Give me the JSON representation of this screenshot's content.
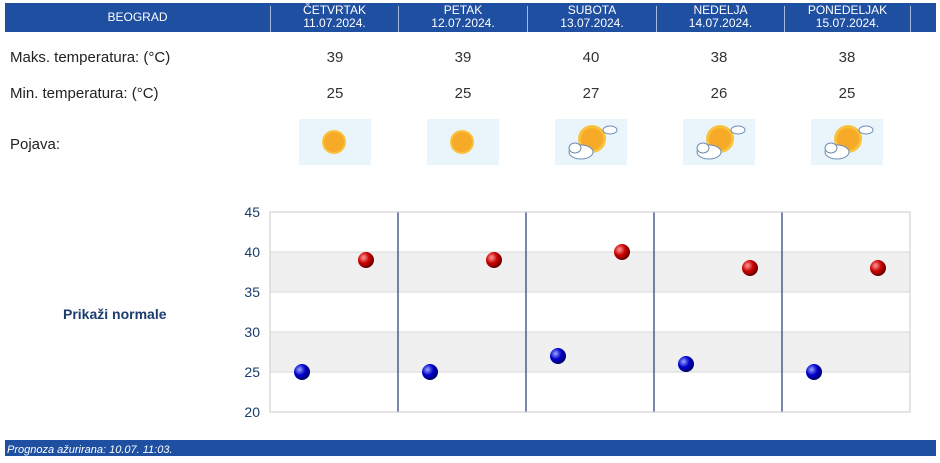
{
  "header": {
    "city": "BEOGRAD",
    "days": [
      {
        "day": "ČETVRTAK",
        "date": "11.07.2024."
      },
      {
        "day": "PETAK",
        "date": "12.07.2024."
      },
      {
        "day": "SUBOTA",
        "date": "13.07.2024."
      },
      {
        "day": "NEDELJA",
        "date": "14.07.2024."
      },
      {
        "day": "PONEDELJAK",
        "date": "15.07.2024."
      }
    ]
  },
  "rows": {
    "max_label": "Maks. temperatura: (°C)",
    "min_label": "Min. temperatura: (°C)",
    "phenomenon_label": "Pojava:",
    "max_values": [
      "39",
      "39",
      "40",
      "38",
      "38"
    ],
    "min_values": [
      "25",
      "25",
      "27",
      "26",
      "25"
    ],
    "icons": [
      "sun-icon",
      "sun-icon",
      "sun-cloud-icon",
      "sun-cloud-icon",
      "sun-cloud-icon"
    ]
  },
  "show_normals_label": "Prikaži normale",
  "footer": {
    "updated_text": "Prognoza ažurirana:  10.07. 11:03."
  },
  "colors": {
    "header_bg": "#1f4fa0",
    "max_marker": "#cc0000",
    "min_marker": "#0000cc"
  },
  "chart_data": {
    "type": "scatter",
    "categories": [
      "11.07.2024.",
      "12.07.2024.",
      "13.07.2024.",
      "14.07.2024.",
      "15.07.2024."
    ],
    "series": [
      {
        "values": [
          39,
          39,
          40,
          38,
          38
        ]
      },
      {
        "values": [
          25,
          25,
          27,
          26,
          25
        ]
      }
    ],
    "yticks": [
      45,
      40,
      35,
      30,
      25,
      20
    ],
    "ylim": [
      20,
      45
    ],
    "grid": true,
    "legend": "none"
  }
}
